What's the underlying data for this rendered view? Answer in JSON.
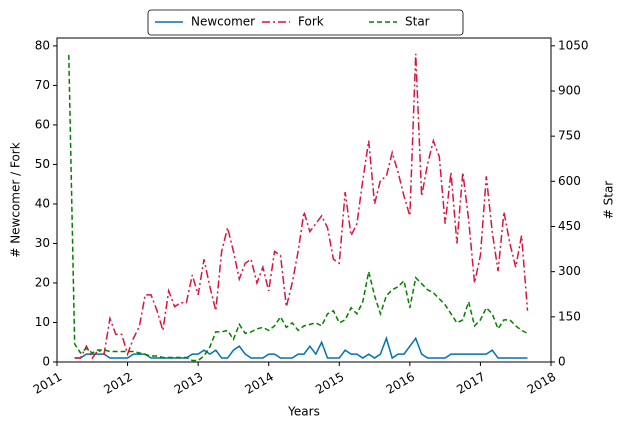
{
  "chart_data": {
    "type": "line",
    "xlabel": "Years",
    "ylabel": "# Newcomer / Fork",
    "y2label": "# Star",
    "xlim": [
      2011,
      2018
    ],
    "xticks": [
      2011,
      2012,
      2013,
      2014,
      2015,
      2016,
      2017,
      2018
    ],
    "ylim": [
      0,
      82
    ],
    "yticks": [
      0,
      10,
      20,
      30,
      40,
      50,
      60,
      70,
      80
    ],
    "y2lim": [
      0,
      1076
    ],
    "y2ticks": [
      0,
      150,
      300,
      450,
      600,
      750,
      900,
      1050
    ],
    "legend": "upper center",
    "x": [
      2011.167,
      2011.25,
      2011.333,
      2011.417,
      2011.5,
      2011.583,
      2011.667,
      2011.75,
      2011.833,
      2011.917,
      2012.0,
      2012.083,
      2012.167,
      2012.25,
      2012.333,
      2012.417,
      2012.5,
      2012.583,
      2012.667,
      2012.75,
      2012.833,
      2012.917,
      2013.0,
      2013.083,
      2013.167,
      2013.25,
      2013.333,
      2013.417,
      2013.5,
      2013.583,
      2013.667,
      2013.75,
      2013.833,
      2013.917,
      2014.0,
      2014.083,
      2014.167,
      2014.25,
      2014.333,
      2014.417,
      2014.5,
      2014.583,
      2014.667,
      2014.75,
      2014.833,
      2014.917,
      2015.0,
      2015.083,
      2015.167,
      2015.25,
      2015.333,
      2015.417,
      2015.5,
      2015.583,
      2015.667,
      2015.75,
      2015.833,
      2015.917,
      2016.0,
      2016.083,
      2016.167,
      2016.25,
      2016.333,
      2016.417,
      2016.5,
      2016.583,
      2016.667,
      2016.75,
      2016.833,
      2016.917,
      2017.0,
      2017.083,
      2017.167,
      2017.25,
      2017.333,
      2017.417,
      2017.5,
      2017.583,
      2017.667
    ],
    "series": [
      {
        "name": "Newcomer",
        "color": "#0072b2",
        "linestyle": "solid",
        "values": [
          null,
          1,
          1,
          2,
          2,
          2,
          2,
          1,
          1,
          1,
          1,
          2,
          2,
          2,
          1,
          1,
          1,
          1,
          1,
          1,
          1,
          2,
          2,
          3,
          2,
          3,
          1,
          1,
          3,
          4,
          2,
          1,
          1,
          1,
          2,
          2,
          1,
          1,
          1,
          2,
          2,
          4,
          2,
          5,
          1,
          1,
          1,
          3,
          2,
          2,
          1,
          2,
          1,
          2,
          6,
          1,
          2,
          2,
          4,
          6,
          2,
          1,
          1,
          1,
          1,
          2,
          2,
          2,
          2,
          2,
          2,
          2,
          3,
          1,
          1,
          1,
          1,
          1,
          1
        ]
      },
      {
        "name": "Fork",
        "color": "#dc143c",
        "linestyle": "dashdot",
        "values": [
          null,
          1,
          1,
          4,
          1,
          3,
          2,
          11,
          7,
          7,
          2,
          6,
          9,
          17,
          17,
          13,
          8,
          18,
          14,
          15,
          15,
          22,
          17,
          26,
          19,
          13,
          28,
          34,
          28,
          21,
          25,
          26,
          20,
          24,
          18,
          28,
          27,
          14,
          20,
          28,
          38,
          33,
          35,
          37,
          34,
          26,
          25,
          43,
          32,
          35,
          46,
          56,
          40,
          46,
          47,
          53,
          48,
          42,
          37,
          78,
          42,
          50,
          56,
          52,
          35,
          48,
          30,
          48,
          36,
          20,
          27,
          47,
          33,
          23,
          38,
          30,
          24,
          32,
          13
        ]
      },
      {
        "name": "Star",
        "color": "#008000",
        "linestyle": "dashed",
        "axis": "y2",
        "values": [
          1020,
          60,
          30,
          45,
          30,
          40,
          40,
          35,
          35,
          35,
          35,
          35,
          30,
          25,
          20,
          20,
          15,
          15,
          15,
          15,
          15,
          5,
          5,
          20,
          50,
          100,
          100,
          105,
          75,
          125,
          95,
          100,
          110,
          115,
          105,
          120,
          150,
          115,
          130,
          105,
          120,
          125,
          130,
          120,
          160,
          170,
          130,
          140,
          180,
          160,
          200,
          300,
          220,
          160,
          220,
          240,
          250,
          270,
          180,
          280,
          260,
          240,
          230,
          210,
          190,
          160,
          130,
          140,
          200,
          120,
          140,
          180,
          160,
          110,
          140,
          140,
          120,
          105,
          95
        ]
      }
    ]
  }
}
